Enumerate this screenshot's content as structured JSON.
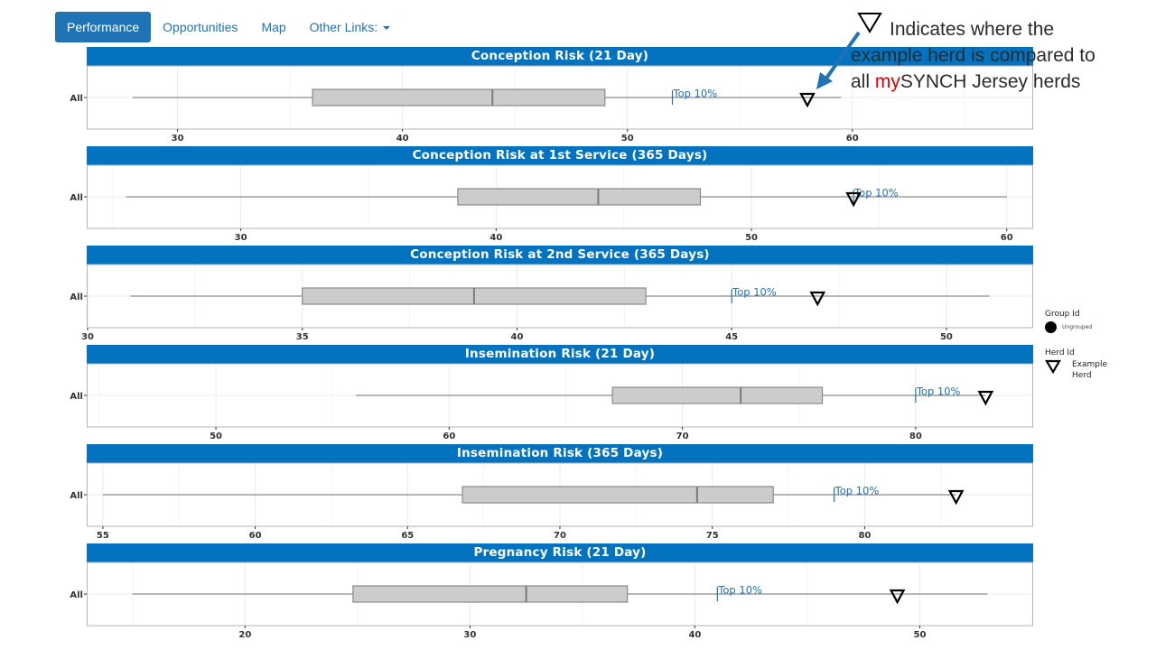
{
  "nav": {
    "items": [
      {
        "label": "Performance",
        "active": true
      },
      {
        "label": "Opportunities",
        "active": false
      },
      {
        "label": "Map",
        "active": false
      },
      {
        "label": "Other Links:",
        "active": false,
        "dropdown": true
      }
    ]
  },
  "callout": {
    "line1": "Indicates where the",
    "line2": "example herd is compared to",
    "line3_prefix": "all ",
    "line3_highlight": "my",
    "line3_suffix": "SYNCH Jersey herds",
    "highlight_color": "#e00000",
    "arrow_color": "#1f73b7"
  },
  "legend": {
    "group_title": "Group Id",
    "group_item": "Ungrouped",
    "herd_title": "Herd Id",
    "herd_item_line1": "Example",
    "herd_item_line2": "Herd"
  },
  "colors": {
    "header_bg": "#0373bf",
    "box_fill": "#cccccc",
    "top10": "#1f73b7"
  },
  "chart_data": [
    {
      "type": "boxplot",
      "title": "Conception Risk (21 Day)",
      "category": "All",
      "xlim": [
        26,
        68
      ],
      "ticks": [
        30,
        40,
        50,
        60
      ],
      "whisker_low": 28,
      "q1": 36,
      "median": 44,
      "q3": 49,
      "whisker_high": 59.5,
      "top10": 52,
      "top10_label": "Top 10%",
      "herd": 58
    },
    {
      "type": "boxplot",
      "title": "Conception Risk at 1st Service (365 Days)",
      "category": "All",
      "xlim": [
        24,
        61
      ],
      "ticks": [
        30,
        40,
        50,
        60
      ],
      "whisker_low": 25.5,
      "q1": 38.5,
      "median": 44,
      "q3": 48,
      "whisker_high": 60,
      "top10": 54,
      "top10_label": "Top 10%",
      "herd": 54
    },
    {
      "type": "boxplot",
      "title": "Conception Risk at 2nd Service (365 Days)",
      "category": "All",
      "xlim": [
        30,
        52
      ],
      "ticks": [
        30,
        35,
        40,
        45,
        50
      ],
      "whisker_low": 31,
      "q1": 35,
      "median": 39,
      "q3": 43,
      "whisker_high": 51,
      "top10": 45,
      "top10_label": "Top 10%",
      "herd": 47
    },
    {
      "type": "boxplot",
      "title": "Insemination Risk (21 Day)",
      "category": "All",
      "xlim": [
        44.5,
        85
      ],
      "ticks": [
        50,
        60,
        70,
        80
      ],
      "whisker_low": 56,
      "q1": 67,
      "median": 72.5,
      "q3": 76,
      "whisker_high": 83,
      "top10": 80,
      "top10_label": "Top 10%",
      "herd": 83
    },
    {
      "type": "boxplot",
      "title": "Insemination Risk (365 Days)",
      "category": "All",
      "xlim": [
        54.5,
        85.5
      ],
      "ticks": [
        55,
        60,
        65,
        70,
        75,
        80
      ],
      "whisker_low": 55,
      "q1": 66.8,
      "median": 74.5,
      "q3": 77,
      "whisker_high": 83,
      "top10": 79,
      "top10_label": "Top 10%",
      "herd": 83
    },
    {
      "type": "boxplot",
      "title": "Pregnancy Risk (21 Day)",
      "category": "All",
      "xlim": [
        13,
        55
      ],
      "ticks": [
        20,
        30,
        40,
        50
      ],
      "whisker_low": 15,
      "q1": 24.8,
      "median": 32.5,
      "q3": 37,
      "whisker_high": 53,
      "top10": 41,
      "top10_label": "Top 10%",
      "herd": 49
    }
  ]
}
